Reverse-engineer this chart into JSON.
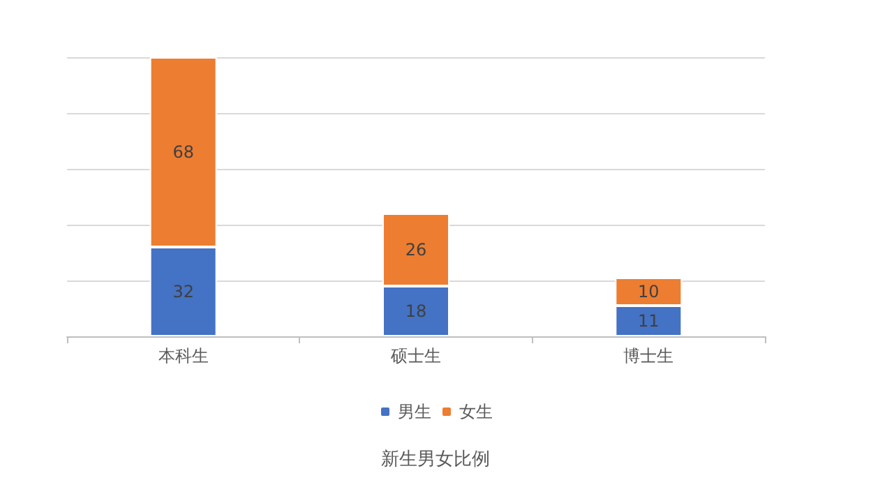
{
  "chart_data": {
    "type": "bar",
    "title": "新生男女比例",
    "categories": [
      "本科生",
      "硕士生",
      "博士生"
    ],
    "series": [
      {
        "name": "男生",
        "color": "#4472c4",
        "values": [
          32,
          18,
          11
        ]
      },
      {
        "name": "女生",
        "color": "#ed7d31",
        "values": [
          68,
          26,
          10
        ]
      }
    ],
    "stacked": true,
    "data_labels": true,
    "ylim": [
      0,
      100
    ],
    "grid": "y",
    "legend": "bottom",
    "tick_labels": "x"
  }
}
